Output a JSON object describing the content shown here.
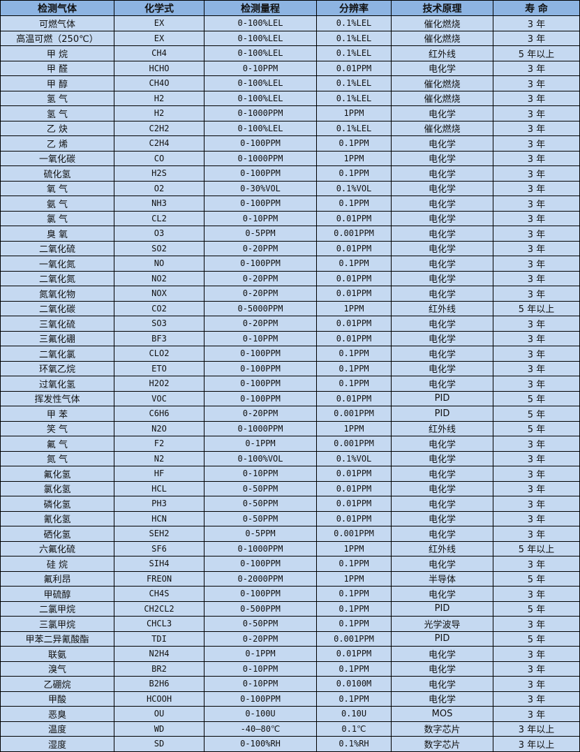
{
  "colors": {
    "header_bg": "#8db4e2",
    "row_bg": "#c5d9f1",
    "border": "#000000"
  },
  "table": {
    "headers": [
      "检测气体",
      "化学式",
      "检测量程",
      "分辨率",
      "技术原理",
      "寿 命"
    ],
    "rows": [
      [
        "可燃气体",
        "EX",
        "0-100%LEL",
        "0.1%LEL",
        "催化燃烧",
        "3 年"
      ],
      [
        "高温可燃（250℃）",
        "EX",
        "0-100%LEL",
        "0.1%LEL",
        "催化燃烧",
        "3 年"
      ],
      [
        "甲 烷",
        "CH4",
        "0-100%LEL",
        "0.1%LEL",
        "红外线",
        "5 年以上"
      ],
      [
        "甲 醛",
        "HCHO",
        "0-10PPM",
        "0.01PPM",
        "电化学",
        "3 年"
      ],
      [
        "甲 醇",
        "CH4O",
        "0-100%LEL",
        "0.1%LEL",
        "催化燃烧",
        "3 年"
      ],
      [
        "氢 气",
        "H2",
        "0-100%LEL",
        "0.1%LEL",
        "催化燃烧",
        "3 年"
      ],
      [
        "氢 气",
        "H2",
        "0-1000PPM",
        "1PPM",
        "电化学",
        "3 年"
      ],
      [
        "乙 炔",
        "C2H2",
        "0-100%LEL",
        "0.1%LEL",
        "催化燃烧",
        "3 年"
      ],
      [
        "乙 烯",
        "C2H4",
        "0-100PPM",
        "0.1PPM",
        "电化学",
        "3 年"
      ],
      [
        "一氧化碳",
        "CO",
        "0-1000PPM",
        "1PPM",
        "电化学",
        "3 年"
      ],
      [
        "硫化氢",
        "H2S",
        "0-100PPM",
        "0.1PPM",
        "电化学",
        "3 年"
      ],
      [
        "氧 气",
        "O2",
        "0-30%VOL",
        "0.1%VOL",
        "电化学",
        "3 年"
      ],
      [
        "氨 气",
        "NH3",
        "0-100PPM",
        "0.1PPM",
        "电化学",
        "3 年"
      ],
      [
        "氯 气",
        "CL2",
        "0-10PPM",
        "0.01PPM",
        "电化学",
        "3 年"
      ],
      [
        "臭 氧",
        "O3",
        "0-5PPM",
        "0.001PPM",
        "电化学",
        "3 年"
      ],
      [
        "二氧化硫",
        "SO2",
        "0-20PPM",
        "0.01PPM",
        "电化学",
        "3 年"
      ],
      [
        "一氧化氮",
        "NO",
        "0-100PPM",
        "0.1PPM",
        "电化学",
        "3 年"
      ],
      [
        "二氧化氮",
        "NO2",
        "0-20PPM",
        "0.01PPM",
        "电化学",
        "3 年"
      ],
      [
        "氮氧化物",
        "NOX",
        "0-20PPM",
        "0.01PPM",
        "电化学",
        "3 年"
      ],
      [
        "二氧化碳",
        "CO2",
        "0-5000PPM",
        "1PPM",
        "红外线",
        "5 年以上"
      ],
      [
        "三氧化硫",
        "SO3",
        "0-20PPM",
        "0.01PPM",
        "电化学",
        "3 年"
      ],
      [
        "三氟化硼",
        "BF3",
        "0-10PPM",
        "0.01PPM",
        "电化学",
        "3 年"
      ],
      [
        "二氧化氯",
        "CLO2",
        "0-100PPM",
        "0.1PPM",
        "电化学",
        "3 年"
      ],
      [
        "环氧乙烷",
        "ETO",
        "0-100PPM",
        "0.1PPM",
        "电化学",
        "3 年"
      ],
      [
        "过氧化氢",
        "H2O2",
        "0-100PPM",
        "0.1PPM",
        "电化学",
        "3 年"
      ],
      [
        "挥发性气体",
        "VOC",
        "0-100PPM",
        "0.01PPM",
        "PID",
        "5 年"
      ],
      [
        "甲 苯",
        "C6H6",
        "0-20PPM",
        "0.001PPM",
        "PID",
        "5 年"
      ],
      [
        "笑 气",
        "N2O",
        "0-1000PPM",
        "1PPM",
        "红外线",
        "5 年"
      ],
      [
        "氟 气",
        "F2",
        "0-1PPM",
        "0.001PPM",
        "电化学",
        "3 年"
      ],
      [
        "氮 气",
        "N2",
        "0-100%VOL",
        "0.1%VOL",
        "电化学",
        "3 年"
      ],
      [
        "氟化氢",
        "HF",
        "0-10PPM",
        "0.01PPM",
        "电化学",
        "3 年"
      ],
      [
        "氯化氢",
        "HCL",
        "0-50PPM",
        "0.01PPM",
        "电化学",
        "3 年"
      ],
      [
        "磷化氢",
        "PH3",
        "0-50PPM",
        "0.01PPM",
        "电化学",
        "3 年"
      ],
      [
        "氰化氢",
        "HCN",
        "0-50PPM",
        "0.01PPM",
        "电化学",
        "3 年"
      ],
      [
        "硒化氢",
        "SEH2",
        "0-5PPM",
        "0.001PPM",
        "电化学",
        "3 年"
      ],
      [
        "六氟化硫",
        "SF6",
        "0-1000PPM",
        "1PPM",
        "红外线",
        "5 年以上"
      ],
      [
        "硅 烷",
        "SIH4",
        "0-100PPM",
        "0.1PPM",
        "电化学",
        "3 年"
      ],
      [
        "氟利昂",
        "FREON",
        "0-2000PPM",
        "1PPM",
        "半导体",
        "5 年"
      ],
      [
        "甲硫醇",
        "CH4S",
        "0-100PPM",
        "0.1PPM",
        "电化学",
        "3 年"
      ],
      [
        "二氯甲烷",
        "CH2CL2",
        "0-500PPM",
        "0.1PPM",
        "PID",
        "5 年"
      ],
      [
        "三氯甲烷",
        "CHCL3",
        "0-50PPM",
        "0.1PPM",
        "光学波导",
        "3 年"
      ],
      [
        "甲苯二异氰酸酯",
        "TDI",
        "0-20PPM",
        "0.001PPM",
        "PID",
        "5 年"
      ],
      [
        "联氨",
        "N2H4",
        "0-1PPM",
        "0.01PPM",
        "电化学",
        "3 年"
      ],
      [
        "溴气",
        "BR2",
        "0-10PPM",
        "0.1PPM",
        "电化学",
        "3 年"
      ],
      [
        "乙硼烷",
        "B2H6",
        "0-10PPM",
        "0.0100M",
        "电化学",
        "3 年"
      ],
      [
        "甲酸",
        "HCOOH",
        "0-100PPM",
        "0.1PPM",
        "电化学",
        "3 年"
      ],
      [
        "恶臭",
        "OU",
        "0-100U",
        "0.10U",
        "MOS",
        "3 年"
      ],
      [
        "温度",
        "WD",
        "-40—80℃",
        "0.1℃",
        "数字芯片",
        "3 年以上"
      ],
      [
        "湿度",
        "SD",
        "0-100%RH",
        "0.1%RH",
        "数字芯片",
        "3 年以上"
      ]
    ]
  }
}
